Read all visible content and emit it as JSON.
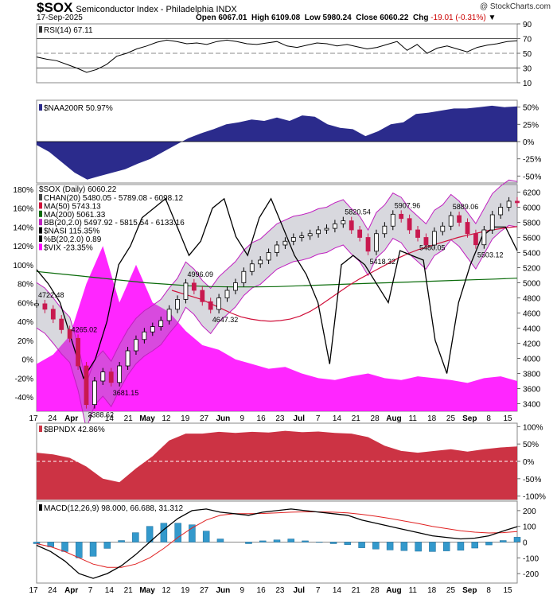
{
  "header": {
    "symbol": "$SOX",
    "description": "Semiconductor Index - Philadelphia  INDX",
    "date": "17-Sep-2025",
    "brand": "@ StockCharts.com",
    "open": "Open 6067.01",
    "high": "High 6109.08",
    "low": "Low 5980.24",
    "close": "Close 6060.22",
    "chg_label": "Chg",
    "chg": "-19.01 (-0.31%)"
  },
  "colors": {
    "rsi_line": "#000000",
    "naa_fill": "#2b2b8c",
    "price_up": "#000000",
    "price_down": "#c8194f",
    "ma50": "#d0103a",
    "ma200": "#0a6b0a",
    "bb": "#c020c0",
    "vix_fill": "#ff00ff",
    "bpndx_fill": "#cc3344",
    "macd_hist": "#3399cc",
    "macd_signal": "#e02020"
  },
  "x_axis_labels": [
    "17",
    "24",
    "Apr",
    "7",
    "14",
    "21",
    "May",
    "12",
    "19",
    "27",
    "Jun",
    "9",
    "16",
    "23",
    "Jul",
    "7",
    "14",
    "21",
    "28",
    "Aug",
    "11",
    "18",
    "25",
    "Sep",
    "8",
    "15"
  ],
  "chart_data": [
    {
      "type": "line",
      "title": "RSI(14) 67.11",
      "ylim": [
        10,
        90
      ],
      "yticks": [
        "90",
        "70",
        "50",
        "30",
        "10"
      ],
      "values": [
        45,
        42,
        40,
        35,
        30,
        24,
        28,
        35,
        46,
        50,
        56,
        60,
        65,
        68,
        66,
        63,
        64,
        62,
        66,
        68,
        66,
        63,
        62,
        64,
        66,
        60,
        58,
        61,
        64,
        63,
        60,
        62,
        59,
        56,
        58,
        62,
        66,
        54,
        62,
        50,
        57,
        60,
        56,
        52,
        58,
        61,
        63,
        66,
        67
      ]
    },
    {
      "type": "area",
      "title": "$NAA200R 50.97%",
      "ylim": [
        -60,
        60
      ],
      "yticks": [
        "50%",
        "25%",
        "0%",
        "-25%",
        "-50%"
      ],
      "values": [
        -5,
        -15,
        -30,
        -45,
        -55,
        -50,
        -45,
        -40,
        -32,
        -25,
        -15,
        -5,
        5,
        12,
        18,
        25,
        28,
        32,
        30,
        35,
        30,
        38,
        36,
        25,
        20,
        18,
        8,
        15,
        25,
        28,
        40,
        42,
        45,
        48,
        48,
        50,
        52,
        50,
        51
      ]
    },
    {
      "type": "line",
      "title": "$SOX (Daily) 6060.22",
      "y_left_ticks": [
        "180%",
        "160%",
        "140%",
        "120%",
        "100%",
        "80%",
        "60%",
        "40%",
        "20%",
        "0%",
        "-20%",
        "-40%"
      ],
      "y_right_ticks": [
        "6200",
        "6000",
        "5800",
        "5600",
        "5400",
        "5200",
        "5000",
        "4800",
        "4600",
        "4400",
        "4200",
        "4000",
        "3800",
        "3600",
        "3400"
      ],
      "ylim": [
        3300,
        6300
      ],
      "legend": [
        "CHAN(20) 5480.05 - 5789.08 - 6098.12",
        "MA(50) 5743.13",
        "MA(200) 5061.33",
        "BB(20,2.0) 5497.92 - 5815.54 - 6133.16",
        "$NASI 115.35%",
        "%B(20,2.0) 0.89",
        "$VIX -23.35%"
      ],
      "annotations": [
        "4722.48",
        "4265.02",
        "3388.62",
        "3681.15",
        "4996.09",
        "4647.32",
        "5820.54",
        "5418.32",
        "5907.96",
        "5480.05",
        "5889.06",
        "5503.12"
      ],
      "close": [
        4722,
        4650,
        4520,
        4380,
        4265,
        3900,
        3388,
        3700,
        3820,
        3681,
        3900,
        4100,
        4250,
        4350,
        4420,
        4500,
        4650,
        4780,
        4996,
        4900,
        4750,
        4647,
        4800,
        4900,
        5000,
        5150,
        5250,
        5300,
        5400,
        5500,
        5550,
        5600,
        5620,
        5650,
        5700,
        5720,
        5780,
        5820,
        5700,
        5600,
        5418,
        5650,
        5750,
        5907,
        5850,
        5700,
        5600,
        5500,
        5680,
        5750,
        5889,
        5800,
        5650,
        5503,
        5700,
        5900,
        6000,
        6080,
        6060
      ],
      "ma50": [
        4900,
        4860,
        4820,
        4780,
        4720,
        4660,
        4600,
        4550,
        4520,
        4500,
        4490,
        4500,
        4520,
        4560,
        4620,
        4700,
        4790,
        4880,
        4970,
        5050,
        5120,
        5190,
        5260,
        5330,
        5390,
        5440,
        5480,
        5520,
        5560,
        5600,
        5630,
        5660,
        5690,
        5710,
        5730,
        5743
      ],
      "ma200": [
        5150,
        5120,
        5090,
        5060,
        5030,
        5000,
        4980,
        4960,
        4950,
        4945,
        4945,
        4950,
        4960,
        4970,
        4980,
        4990,
        5000,
        5010,
        5020,
        5030,
        5040,
        5050,
        5061
      ],
      "nasi": [
        95,
        80,
        60,
        20,
        -20,
        0,
        40,
        100,
        120,
        150,
        160,
        170,
        140,
        110,
        125,
        160,
        170,
        130,
        110,
        150,
        170,
        140,
        110,
        90,
        60,
        -5,
        100,
        110,
        100,
        80,
        60,
        115,
        110,
        105,
        20,
        -15,
        60,
        100,
        130,
        140,
        140,
        115
      ],
      "vix": [
        -5,
        5,
        25,
        80,
        120,
        60,
        100,
        60,
        50,
        30,
        15,
        10,
        0,
        -5,
        -10,
        -8,
        -15,
        -20,
        -22,
        -18,
        -15,
        -20,
        -22,
        -18,
        -20,
        -22,
        -25,
        -20,
        -18,
        -23
      ]
    },
    {
      "type": "area",
      "title": "$BPNDX 42.86%",
      "ylim": [
        -110,
        110
      ],
      "yticks": [
        "100%",
        "50%",
        "0%",
        "-50%",
        "-100%"
      ],
      "values": [
        25,
        20,
        10,
        -15,
        -50,
        -60,
        -20,
        15,
        60,
        80,
        80,
        85,
        82,
        85,
        83,
        88,
        84,
        86,
        82,
        80,
        70,
        45,
        30,
        25,
        30,
        35,
        28,
        35,
        40,
        43
      ]
    },
    {
      "type": "line",
      "title": "MACD(12,26,9) 98.000, 66.688, 31.312",
      "ylim": [
        -260,
        260
      ],
      "yticks": [
        "200",
        "100",
        "0",
        "-100",
        "-200"
      ],
      "series": [
        {
          "name": "MACD",
          "values": [
            -20,
            -60,
            -120,
            -200,
            -230,
            -200,
            -150,
            -80,
            0,
            80,
            150,
            200,
            210,
            190,
            180,
            170,
            190,
            200,
            210,
            200,
            190,
            180,
            170,
            140,
            120,
            100,
            80,
            60,
            40,
            30,
            20,
            25,
            40,
            70,
            98
          ]
        },
        {
          "name": "Signal",
          "values": [
            -10,
            -30,
            -60,
            -100,
            -140,
            -160,
            -160,
            -140,
            -100,
            -40,
            30,
            90,
            140,
            170,
            180,
            180,
            182,
            186,
            190,
            192,
            192,
            190,
            186,
            176,
            164,
            150,
            134,
            118,
            100,
            86,
            72,
            63,
            58,
            60,
            67
          ]
        },
        {
          "name": "Histogram",
          "values": [
            -10,
            -30,
            -60,
            -100,
            -90,
            -40,
            10,
            60,
            100,
            120,
            120,
            110,
            70,
            20,
            0,
            -10,
            8,
            14,
            20,
            8,
            -2,
            -10,
            -16,
            -36,
            -44,
            -50,
            -54,
            -58,
            -60,
            -56,
            -52,
            -38,
            -18,
            10,
            31
          ]
        }
      ]
    }
  ]
}
